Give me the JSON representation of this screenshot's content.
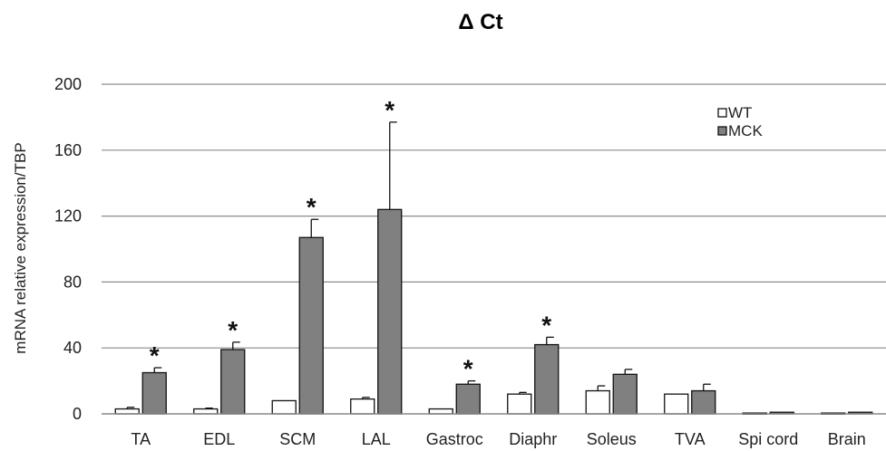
{
  "chart_data": {
    "type": "bar",
    "title": "Δ Ct",
    "ylabel": "mRNA relative expression/TBP",
    "xlabel": "",
    "ylim": [
      0,
      200
    ],
    "yticks": [
      "0",
      "40",
      "80",
      "120",
      "160",
      "200"
    ],
    "ytick_values": [
      0,
      40,
      80,
      120,
      160,
      200
    ],
    "grid": "horizontal",
    "legend_position": "top-right",
    "categories": [
      "TA",
      "EDL",
      "SCM",
      "LAL",
      "Gastroc",
      "Diaphr",
      "Soleus",
      "TVA",
      "Spi cord",
      "Brain"
    ],
    "series": [
      {
        "name": "WT",
        "color": "#ffffff",
        "values": [
          3,
          3,
          8,
          9,
          3,
          12,
          14,
          12,
          0.5,
          0.5
        ],
        "errors": [
          1,
          0.5,
          0,
          1,
          0,
          1,
          3,
          0,
          0,
          0
        ]
      },
      {
        "name": "MCK",
        "color": "#808080",
        "values": [
          25,
          39,
          107,
          124,
          18,
          42,
          24,
          14,
          1,
          1
        ],
        "errors": [
          3,
          4.5,
          11,
          53,
          2,
          4.5,
          3,
          4,
          0,
          0
        ]
      }
    ],
    "significance_marker": "*",
    "significant": [
      true,
      true,
      true,
      true,
      true,
      true,
      false,
      false,
      false,
      false
    ]
  }
}
